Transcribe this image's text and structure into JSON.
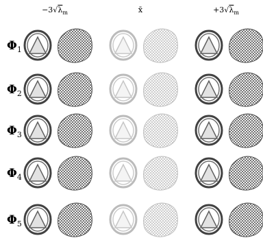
{
  "header": {
    "columns": [
      {
        "prefix": "−3√",
        "symbol": "λ",
        "sub": "m"
      },
      {
        "prefix": "x̄"
      },
      {
        "prefix": "+3√",
        "symbol": "λ",
        "sub": "m"
      }
    ]
  },
  "rows": [
    {
      "symbol": "Φ",
      "sub": "1"
    },
    {
      "symbol": "Φ",
      "sub": "2"
    },
    {
      "symbol": "Φ",
      "sub": "3"
    },
    {
      "symbol": "Φ",
      "sub": "4"
    },
    {
      "symbol": "Φ",
      "sub": "5"
    }
  ]
}
